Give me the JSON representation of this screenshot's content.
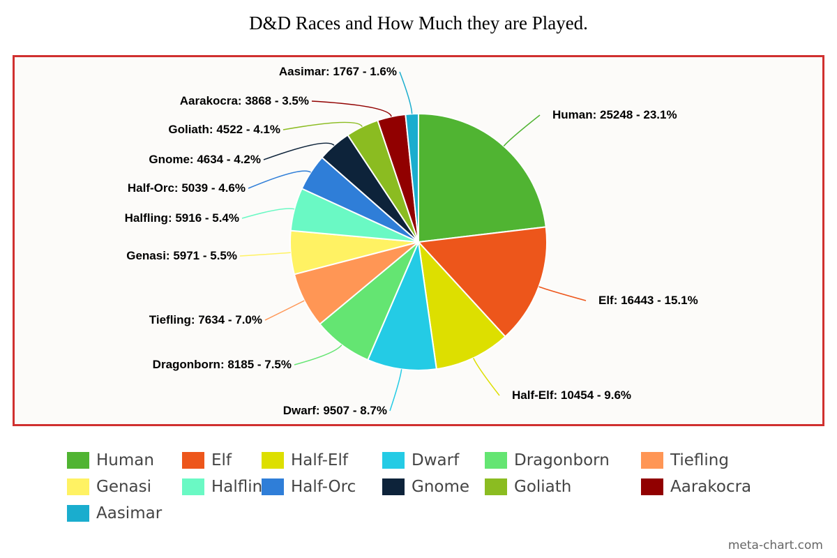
{
  "chart_data": {
    "type": "pie",
    "title": "D&D Races and How Much they are Played.",
    "slices": [
      {
        "name": "Human",
        "value": 25248,
        "percent": "23.1%",
        "color": "#50b432"
      },
      {
        "name": "Elf",
        "value": 16443,
        "percent": "15.1%",
        "color": "#ed561b"
      },
      {
        "name": "Half-Elf",
        "value": 10454,
        "percent": "9.6%",
        "color": "#dddf00"
      },
      {
        "name": "Dwarf",
        "value": 9507,
        "percent": "8.7%",
        "color": "#24cbe5"
      },
      {
        "name": "Dragonborn",
        "value": 8185,
        "percent": "7.5%",
        "color": "#64e572"
      },
      {
        "name": "Tiefling",
        "value": 7634,
        "percent": "7.0%",
        "color": "#ff9655"
      },
      {
        "name": "Genasi",
        "value": 5971,
        "percent": "5.5%",
        "color": "#fff263"
      },
      {
        "name": "Halfling",
        "value": 5916,
        "percent": "5.4%",
        "color": "#6af9c4"
      },
      {
        "name": "Half-Orc",
        "value": 5039,
        "percent": "4.6%",
        "color": "#2f7ed8"
      },
      {
        "name": "Gnome",
        "value": 4634,
        "percent": "4.2%",
        "color": "#0d233a"
      },
      {
        "name": "Goliath",
        "value": 4522,
        "percent": "4.1%",
        "color": "#8bbc21"
      },
      {
        "name": "Aarakocra",
        "value": 3868,
        "percent": "3.5%",
        "color": "#910000"
      },
      {
        "name": "Aasimar",
        "value": 1767,
        "percent": "1.6%",
        "color": "#1aadce"
      }
    ],
    "legend_position": "bottom"
  },
  "watermark": "meta-chart.com"
}
